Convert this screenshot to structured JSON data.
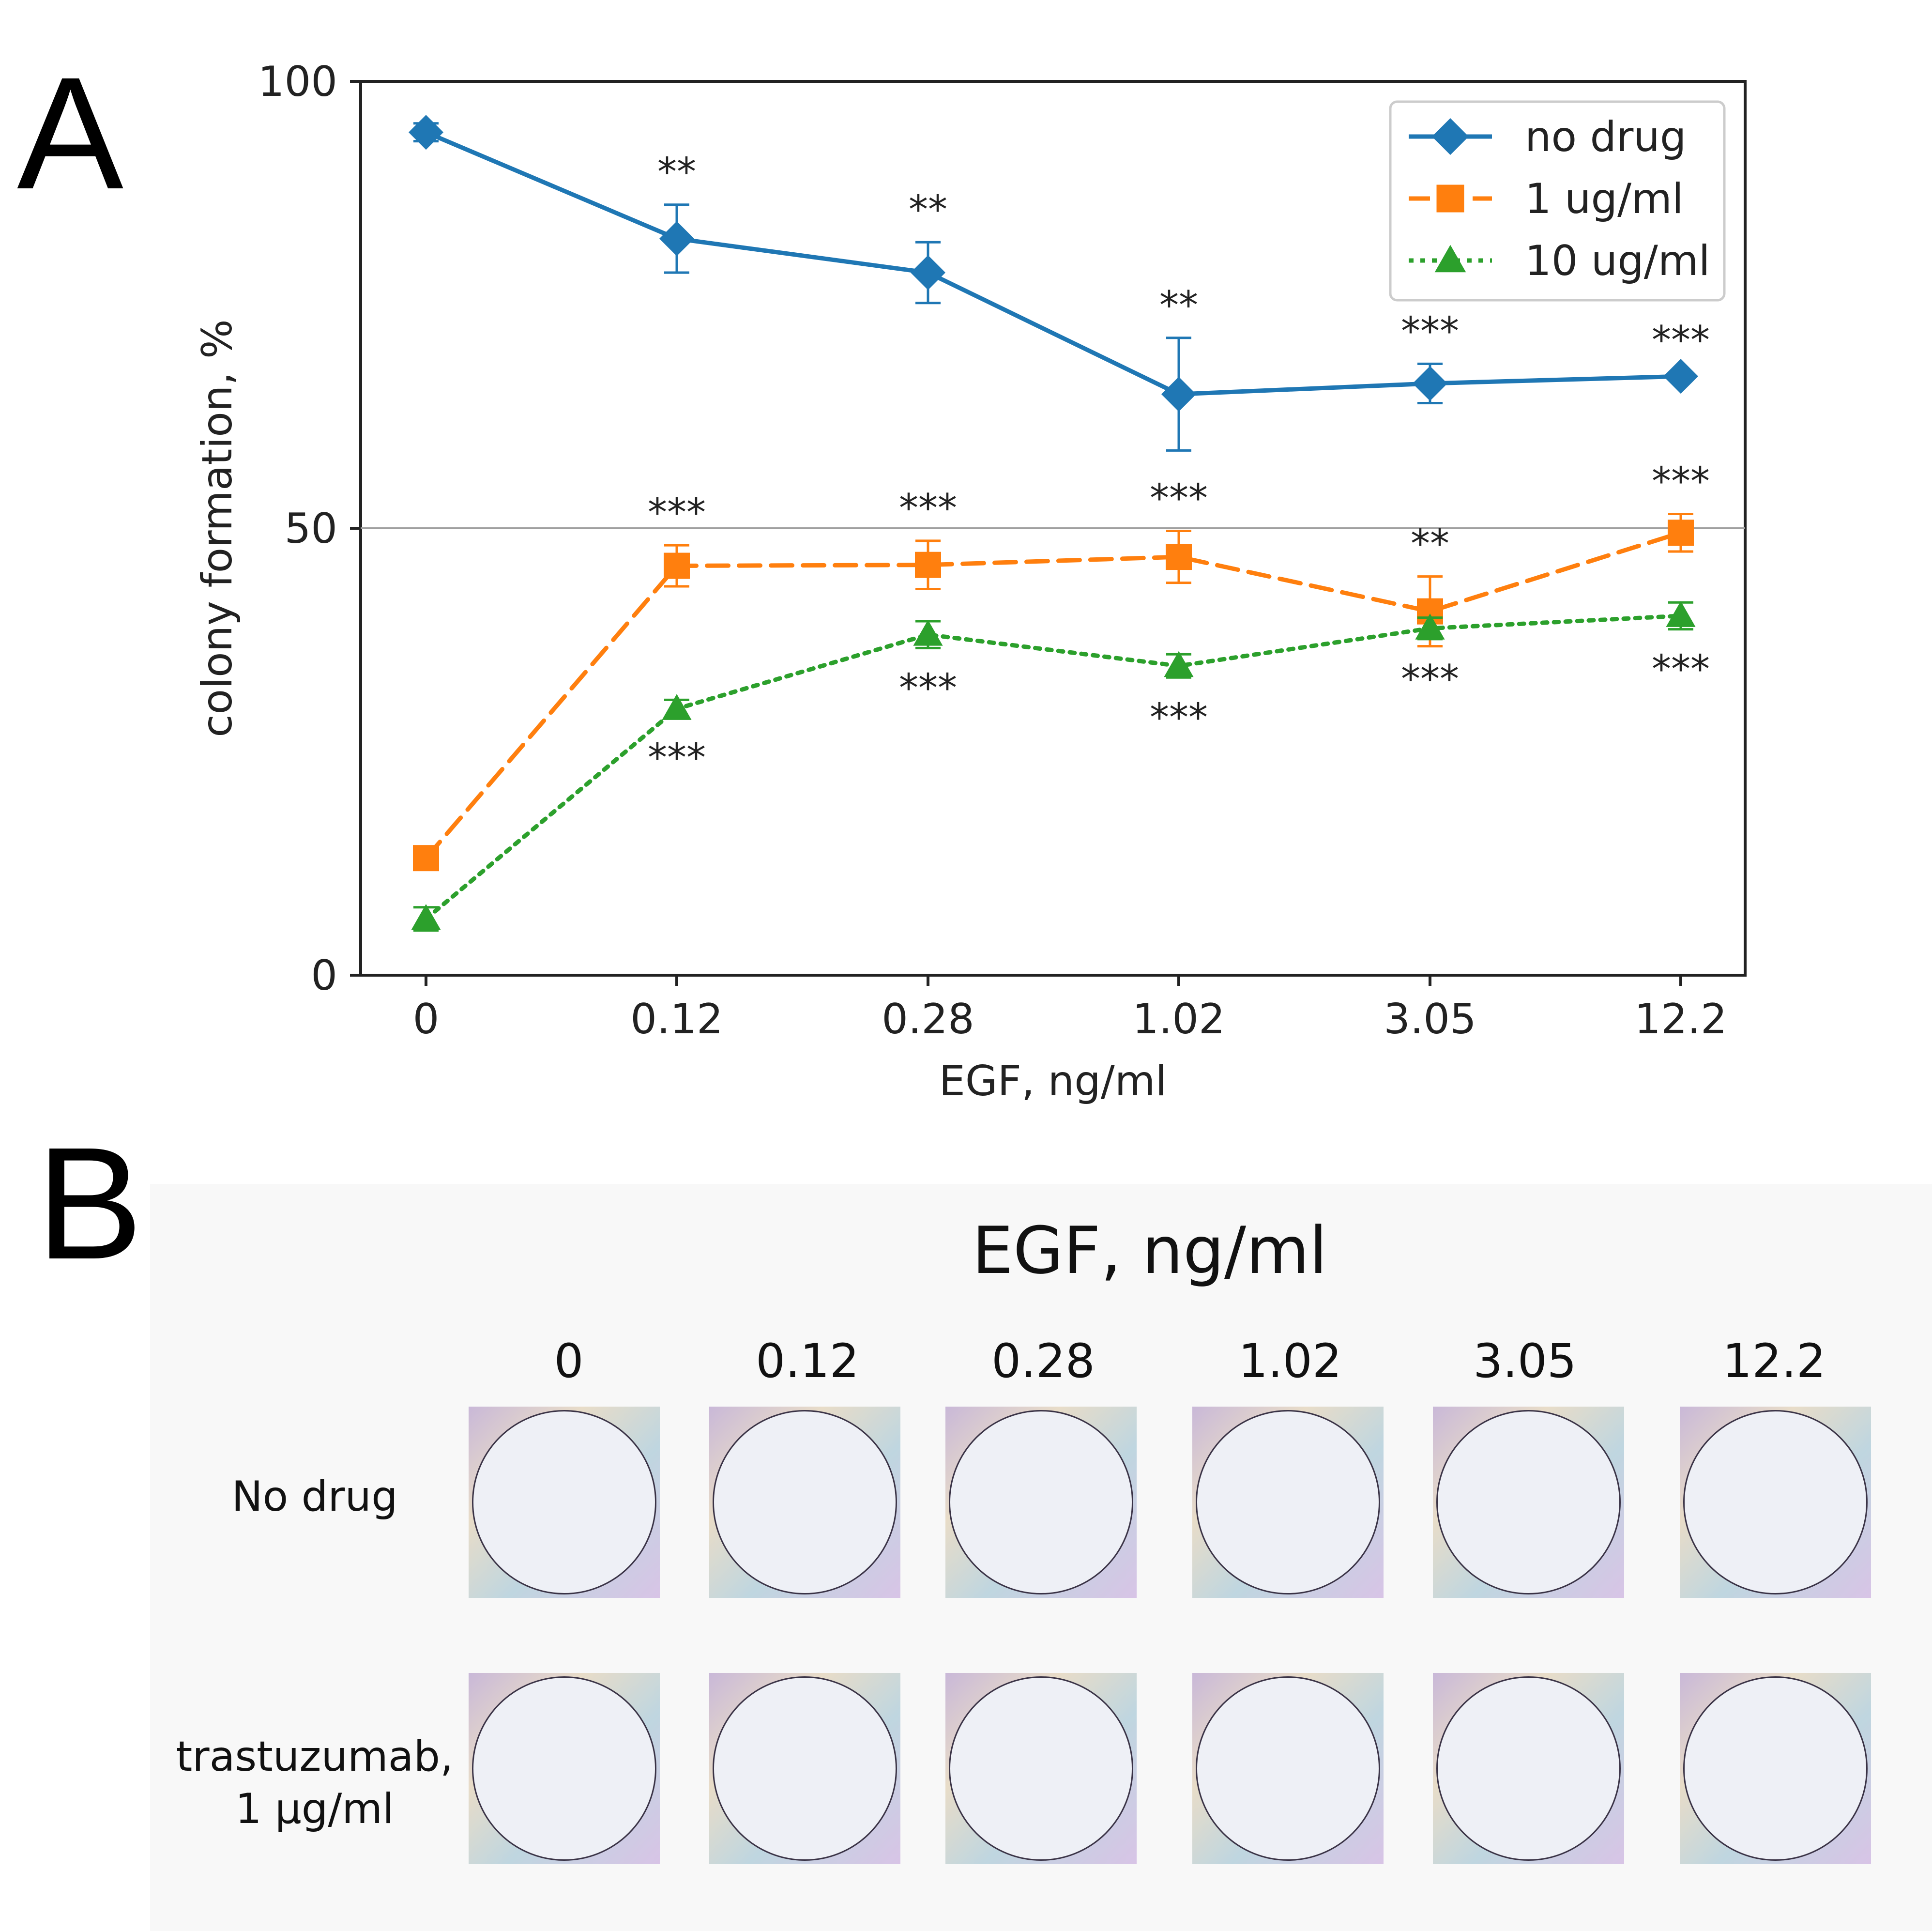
{
  "panel_labels": {
    "a": "A",
    "b": "B"
  },
  "chart_data": {
    "type": "line",
    "categories": [
      "0",
      "0.12",
      "0.28",
      "1.02",
      "3.05",
      "12.2"
    ],
    "xlabel": "EGF, ng/ml",
    "ylabel": "colony formation, %",
    "ylim": [
      0,
      100
    ],
    "yticks": [
      "0",
      "50",
      "100"
    ],
    "reference_line_y": 50,
    "legend_position": "top-right",
    "series": [
      {
        "name": "no drug",
        "color": "#1f77b4",
        "marker": "diamond",
        "linestyle": "solid",
        "values": [
          94.3,
          82.4,
          78.6,
          65.0,
          66.2,
          67.0
        ],
        "errors": [
          1.0,
          3.8,
          3.4,
          6.3,
          2.2,
          0.4
        ],
        "annotations": [
          "",
          "**",
          "**",
          "**",
          "***",
          "***"
        ],
        "annotation_side": "above"
      },
      {
        "name": "1 ug/ml",
        "color": "#ff7f0e",
        "marker": "square",
        "linestyle": "dashed",
        "values": [
          13.1,
          45.8,
          45.9,
          46.8,
          40.7,
          49.5
        ],
        "errors": [
          0.6,
          2.3,
          2.7,
          2.9,
          3.9,
          2.1
        ],
        "annotations": [
          "",
          "***",
          "***",
          "***",
          "**",
          "***"
        ],
        "annotation_side": "above"
      },
      {
        "name": "10 ug/ml",
        "color": "#2ca02c",
        "marker": "triangle",
        "linestyle": "dotted",
        "values": [
          6.3,
          29.8,
          38.1,
          34.6,
          38.8,
          40.2
        ],
        "errors": [
          1.3,
          1.0,
          1.5,
          1.3,
          1.2,
          1.5
        ],
        "annotations": [
          "",
          "***",
          "***",
          "***",
          "***",
          "***"
        ],
        "annotation_side": "below"
      }
    ]
  },
  "panel_b": {
    "title": "EGF, ng/ml",
    "columns": [
      "0",
      "0.12",
      "0.28",
      "1.02",
      "3.05",
      "12.2"
    ],
    "rows": [
      {
        "label_line1": "No drug",
        "label_line2": ""
      },
      {
        "label_line1": "trastuzumab,",
        "label_line2": "1 µg/ml"
      }
    ]
  }
}
